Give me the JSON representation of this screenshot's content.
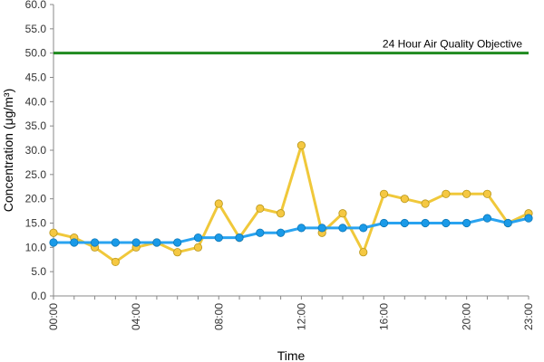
{
  "chart_data": {
    "type": "line",
    "xlabel": "Time",
    "ylabel": "Concentration (μg/m³)",
    "ylim": [
      0,
      60
    ],
    "y_ticks": [
      "0.0",
      "5.0",
      "10.0",
      "15.0",
      "20.0",
      "25.0",
      "30.0",
      "35.0",
      "40.0",
      "45.0",
      "50.0",
      "55.0",
      "60.0"
    ],
    "x": [
      "00:00",
      "01:00",
      "02:00",
      "03:00",
      "04:00",
      "05:00",
      "06:00",
      "07:00",
      "08:00",
      "09:00",
      "10:00",
      "11:00",
      "12:00",
      "13:00",
      "14:00",
      "15:00",
      "16:00",
      "17:00",
      "18:00",
      "19:00",
      "20:00",
      "21:00",
      "22:00",
      "23:00"
    ],
    "x_tick_labels": [
      "00:00",
      "04:00",
      "08:00",
      "12:00",
      "16:00",
      "20:00",
      "23:00"
    ],
    "series": [
      {
        "color": "#f0c83a",
        "marker_color": "#f5c842",
        "values": [
          13,
          12,
          10,
          7,
          10,
          11,
          9,
          10,
          19,
          12,
          18,
          17,
          31,
          13,
          17,
          9,
          21,
          20,
          19,
          21,
          21,
          21,
          15,
          17
        ]
      },
      {
        "color": "#29a3f0",
        "marker_color": "#1a9ae8",
        "values": [
          11,
          11,
          11,
          11,
          11,
          11,
          11,
          12,
          12,
          12,
          13,
          13,
          14,
          14,
          14,
          14,
          15,
          15,
          15,
          15,
          15,
          16,
          15,
          16
        ]
      }
    ],
    "reference_line": {
      "value": 50,
      "label": "24 Hour Air Quality Objective",
      "color": "#1f8a1f"
    },
    "grid": false,
    "legend": "none"
  }
}
